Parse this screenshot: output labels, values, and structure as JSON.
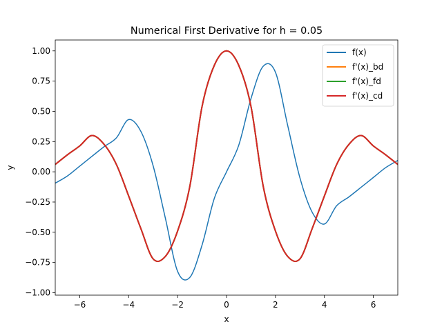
{
  "chart_data": {
    "type": "line",
    "title": "Numerical First Derivative for h = 0.05",
    "xlabel": "x",
    "ylabel": "y",
    "xlim": [
      -7,
      7
    ],
    "ylim": [
      -1.02,
      1.09
    ],
    "grid": false,
    "legend_position": "top-right",
    "x_ticks": [
      -6,
      -4,
      -2,
      0,
      2,
      4,
      6
    ],
    "x_tick_labels": [
      "−6",
      "−4",
      "−2",
      "0",
      "2",
      "4",
      "6"
    ],
    "y_ticks": [
      -1.0,
      -0.75,
      -0.5,
      -0.25,
      0.0,
      0.25,
      0.5,
      0.75,
      1.0
    ],
    "y_tick_labels": [
      "−1.00",
      "−0.75",
      "−0.50",
      "−0.25",
      "0.00",
      "0.25",
      "0.50",
      "0.75",
      "1.00"
    ],
    "x": [
      -7,
      -6.5,
      -6,
      -5.5,
      -5,
      -4.5,
      -4,
      -3.5,
      -3,
      -2.5,
      -2,
      -1.5,
      -1,
      -0.5,
      0,
      0.5,
      1,
      1.5,
      2,
      2.5,
      3,
      3.5,
      4,
      4.5,
      5,
      5.5,
      6,
      6.5,
      7
    ],
    "series": [
      {
        "name": "f(x)",
        "color": "#1f77b4",
        "values": [
          -0.094,
          -0.034,
          0.047,
          0.128,
          0.208,
          0.281,
          0.432,
          0.334,
          0.05,
          -0.383,
          -0.823,
          -0.873,
          -0.606,
          -0.22,
          0.0,
          0.22,
          0.606,
          0.873,
          0.823,
          0.383,
          -0.05,
          -0.334,
          -0.432,
          -0.281,
          -0.208,
          -0.128,
          -0.047,
          0.034,
          0.094
        ]
      },
      {
        "name": "f'(x)_bd",
        "color": "#ff7f0e",
        "values": [
          0.061,
          0.141,
          0.214,
          0.3,
          0.226,
          0.06,
          -0.2,
          -0.47,
          -0.72,
          -0.7,
          -0.49,
          -0.12,
          0.54,
          0.88,
          1.0,
          0.88,
          0.54,
          -0.12,
          -0.49,
          -0.7,
          -0.72,
          -0.47,
          -0.2,
          0.06,
          0.226,
          0.3,
          0.214,
          0.141,
          0.061
        ]
      },
      {
        "name": "f'(x)_fd",
        "color": "#2ca02c",
        "values": [
          0.061,
          0.141,
          0.214,
          0.3,
          0.226,
          0.06,
          -0.2,
          -0.47,
          -0.72,
          -0.7,
          -0.49,
          -0.12,
          0.54,
          0.88,
          1.0,
          0.88,
          0.54,
          -0.12,
          -0.49,
          -0.7,
          -0.72,
          -0.47,
          -0.2,
          0.06,
          0.226,
          0.3,
          0.214,
          0.141,
          0.061
        ]
      },
      {
        "name": "f'(x)_cd",
        "color": "#d62728",
        "values": [
          0.061,
          0.141,
          0.214,
          0.3,
          0.226,
          0.06,
          -0.2,
          -0.47,
          -0.72,
          -0.7,
          -0.49,
          -0.12,
          0.54,
          0.88,
          1.0,
          0.88,
          0.54,
          -0.12,
          -0.49,
          -0.7,
          -0.72,
          -0.47,
          -0.2,
          0.06,
          0.226,
          0.3,
          0.214,
          0.141,
          0.061
        ]
      }
    ]
  }
}
